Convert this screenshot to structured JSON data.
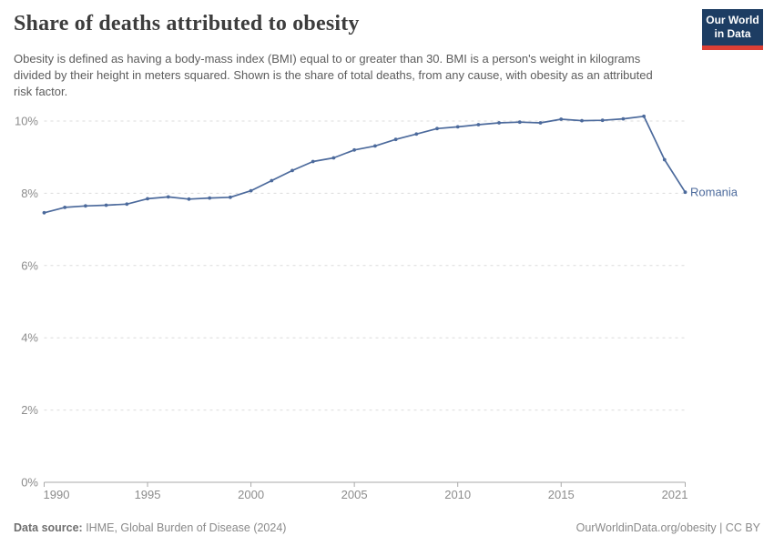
{
  "header": {
    "title": "Share of deaths attributed to obesity",
    "subtitle": "Obesity is defined as having a body-mass index (BMI) equal to or greater than 30. BMI is a person's weight in kilograms divided by their height in meters squared. Shown is the share of total deaths, from any cause, with obesity as an attributed risk factor.",
    "logo": {
      "line1": "Our World",
      "line2": "in Data"
    }
  },
  "chart_data": {
    "type": "line",
    "title": "Share of deaths attributed to obesity",
    "xlabel": "",
    "ylabel": "",
    "x_range": [
      1990,
      2021
    ],
    "x": [
      1990,
      1991,
      1992,
      1993,
      1994,
      1995,
      1996,
      1997,
      1998,
      1999,
      2000,
      2001,
      2002,
      2003,
      2004,
      2005,
      2006,
      2007,
      2008,
      2009,
      2010,
      2011,
      2012,
      2013,
      2014,
      2015,
      2016,
      2017,
      2018,
      2019,
      2020,
      2021
    ],
    "series": [
      {
        "name": "Romania",
        "color": "#4C6A9C",
        "values": [
          7.46,
          7.61,
          7.65,
          7.67,
          7.7,
          7.85,
          7.9,
          7.84,
          7.87,
          7.89,
          8.07,
          8.35,
          8.63,
          8.88,
          8.98,
          9.2,
          9.31,
          9.49,
          9.64,
          9.79,
          9.84,
          9.9,
          9.95,
          9.97,
          9.95,
          10.05,
          10.01,
          10.02,
          10.06,
          10.13,
          8.93,
          8.03
        ]
      }
    ],
    "ylim": [
      0,
      10.5
    ],
    "yticks": [
      0,
      2,
      4,
      6,
      8,
      10
    ],
    "ytick_suffix": "%",
    "xticks": [
      1990,
      1995,
      2000,
      2005,
      2010,
      2015,
      2021
    ],
    "grid": "horizontal-dashed",
    "legend_position": "end-of-line"
  },
  "footer": {
    "source_label": "Data source:",
    "source_text": "IHME, Global Burden of Disease (2024)",
    "link_text": "OurWorldinData.org/obesity | CC BY"
  },
  "colors": {
    "line": "#4C6A9C",
    "end_label": "#4C6A9C",
    "grid": "#dcdcdc",
    "axis": "#a9a9a9",
    "tick_label": "#8c8c8c",
    "logo_bg": "#1d3d63",
    "logo_accent": "#dc3f35",
    "title_text": "#3d3d3d",
    "subtitle_text": "#5c5c5c",
    "footer_text": "#8a8a8a"
  }
}
